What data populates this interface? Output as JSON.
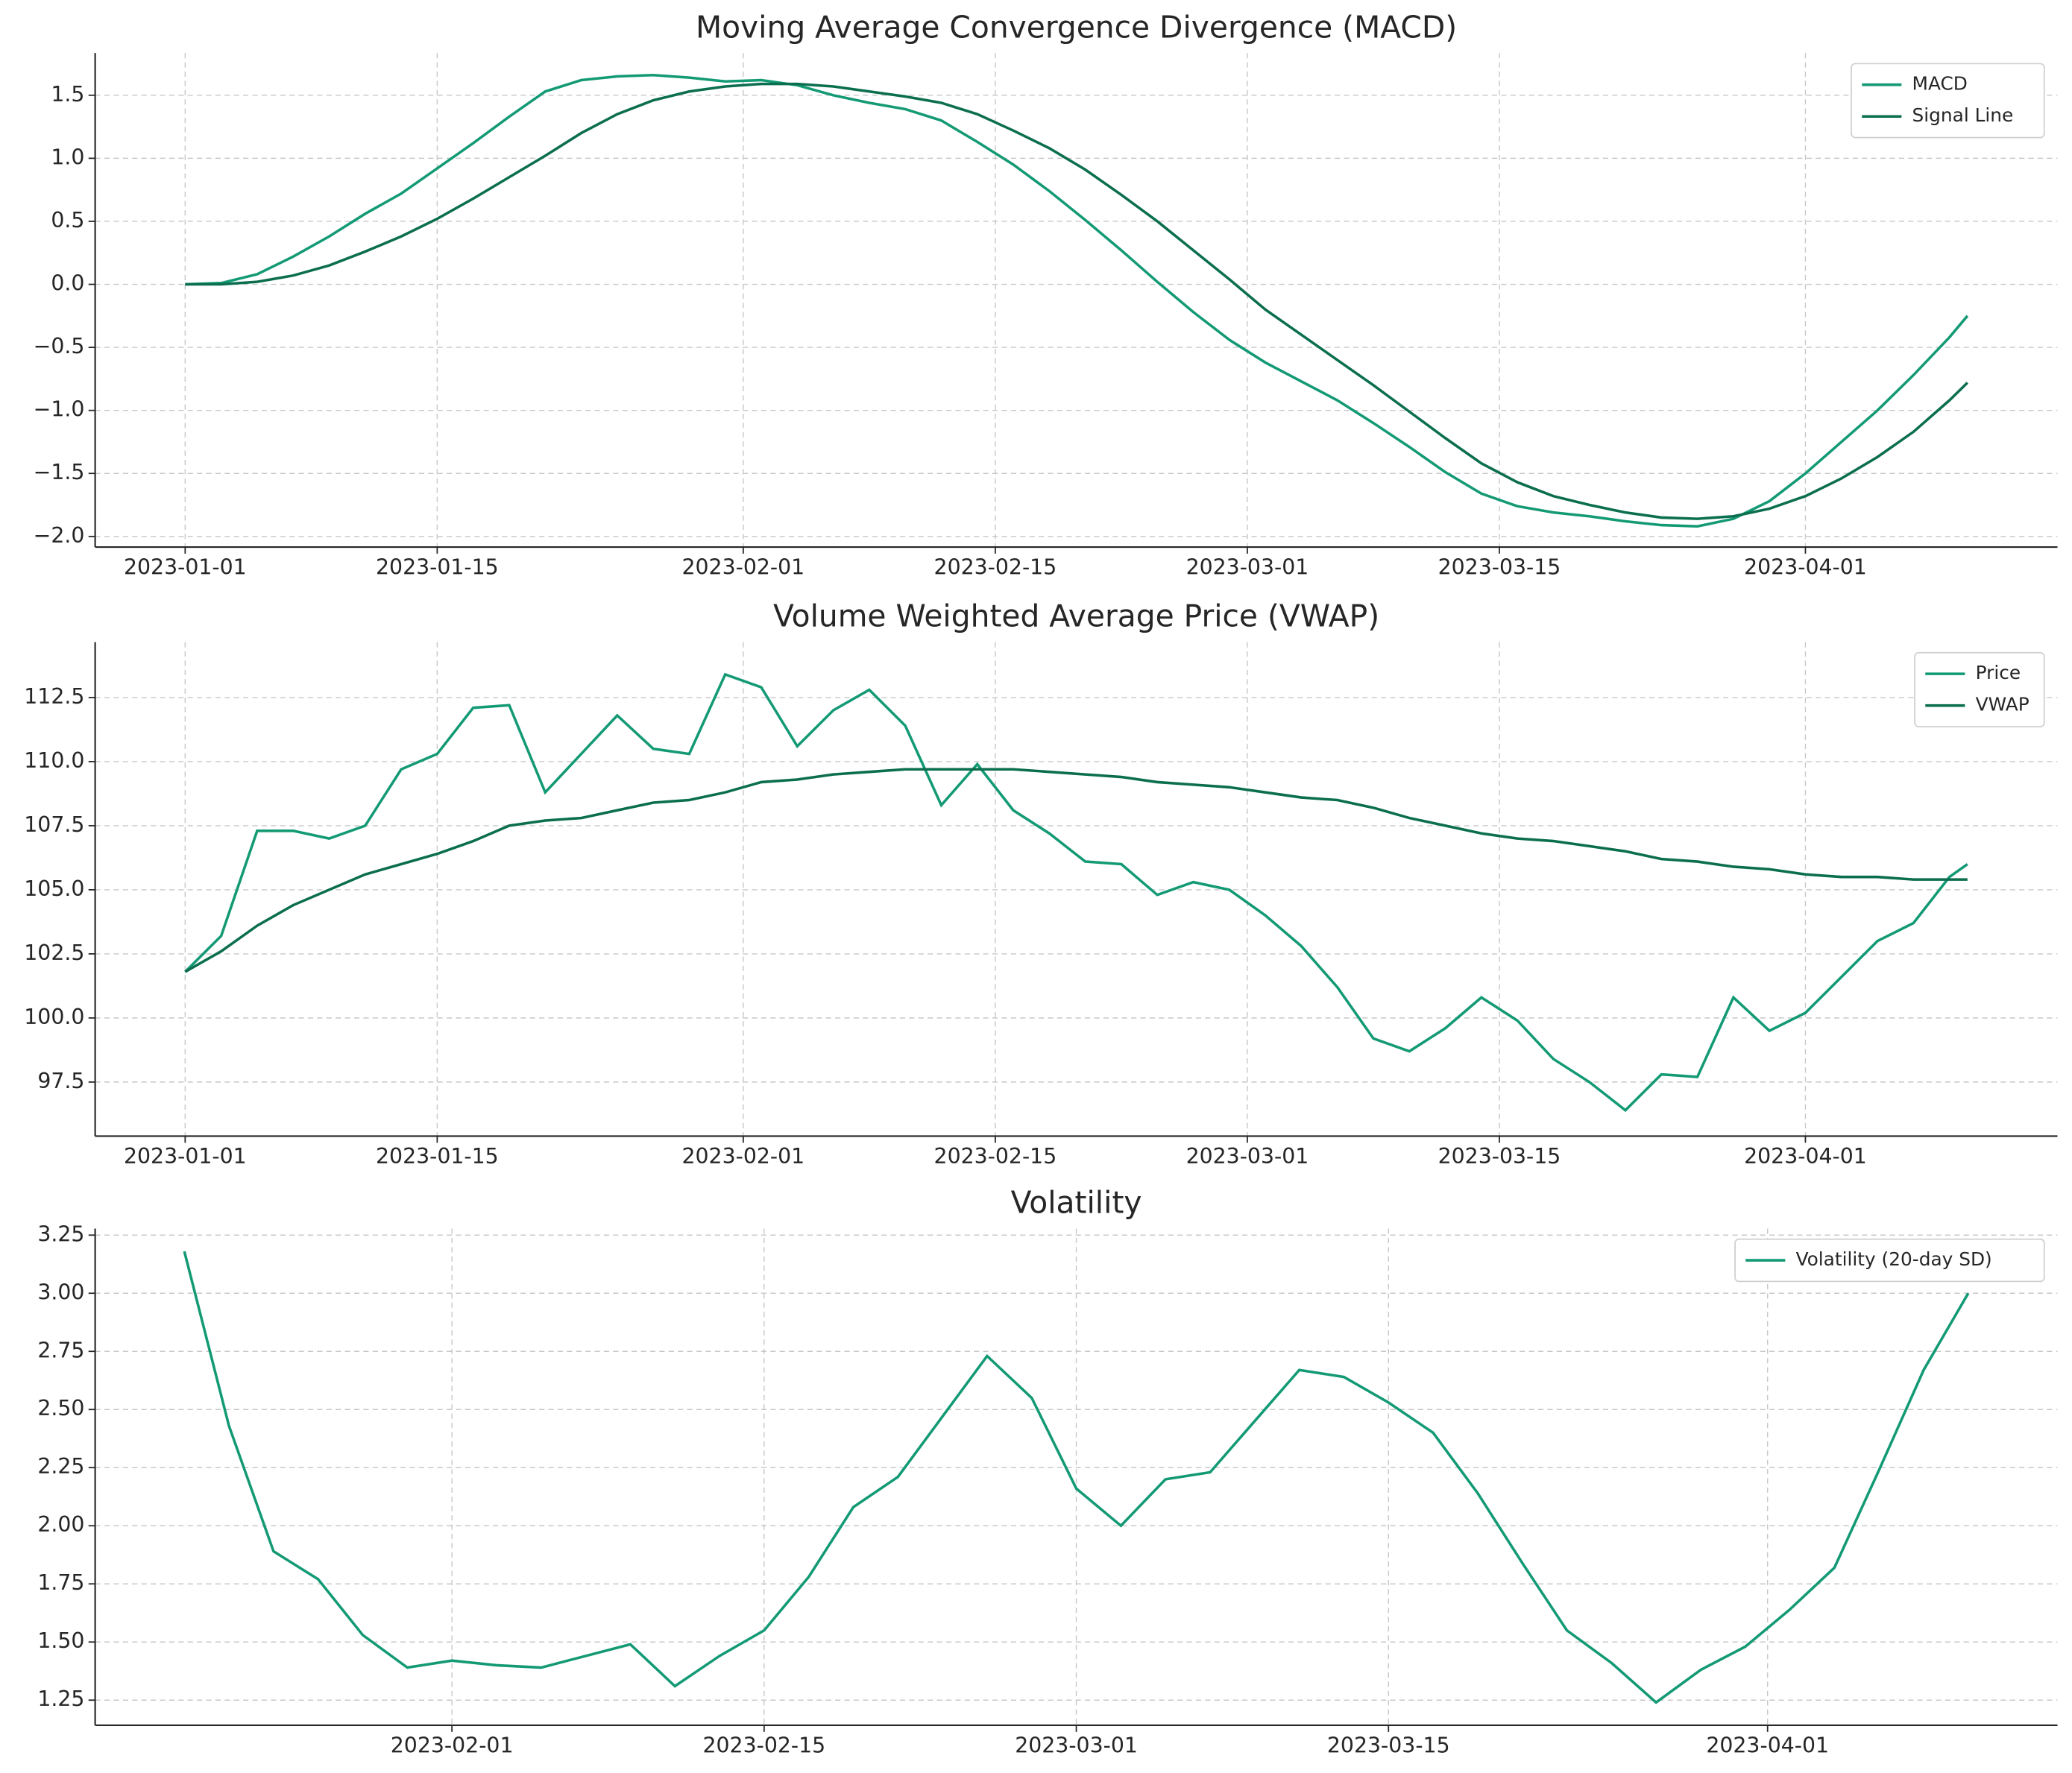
{
  "chart_data": [
    {
      "type": "line",
      "title": "Moving Average Convergence Divergence (MACD)",
      "x": [
        "2023-01-01",
        "2023-01-03",
        "2023-01-05",
        "2023-01-07",
        "2023-01-09",
        "2023-01-11",
        "2023-01-13",
        "2023-01-15",
        "2023-01-17",
        "2023-01-19",
        "2023-01-21",
        "2023-01-23",
        "2023-01-25",
        "2023-01-27",
        "2023-01-29",
        "2023-01-31",
        "2023-02-02",
        "2023-02-04",
        "2023-02-06",
        "2023-02-08",
        "2023-02-10",
        "2023-02-12",
        "2023-02-14",
        "2023-02-16",
        "2023-02-18",
        "2023-02-20",
        "2023-02-22",
        "2023-02-24",
        "2023-02-26",
        "2023-02-28",
        "2023-03-02",
        "2023-03-04",
        "2023-03-06",
        "2023-03-08",
        "2023-03-10",
        "2023-03-12",
        "2023-03-14",
        "2023-03-16",
        "2023-03-18",
        "2023-03-20",
        "2023-03-22",
        "2023-03-24",
        "2023-03-26",
        "2023-03-28",
        "2023-03-30",
        "2023-04-01",
        "2023-04-03",
        "2023-04-05",
        "2023-04-07",
        "2023-04-09",
        "2023-04-10"
      ],
      "series": [
        {
          "name": "MACD",
          "color": "#139a74",
          "values": [
            0,
            0.01,
            0.08,
            0.22,
            0.38,
            0.56,
            0.72,
            0.92,
            1.12,
            1.33,
            1.53,
            1.62,
            1.65,
            1.66,
            1.64,
            1.61,
            1.62,
            1.58,
            1.5,
            1.44,
            1.39,
            1.3,
            1.13,
            0.95,
            0.74,
            0.51,
            0.27,
            0.02,
            -0.22,
            -0.44,
            -0.62,
            -0.77,
            -0.92,
            -1.1,
            -1.29,
            -1.49,
            -1.66,
            -1.76,
            -1.81,
            -1.84,
            -1.88,
            -1.91,
            -1.92,
            -1.86,
            -1.72,
            -1.5,
            -1.25,
            -1.0,
            -0.72,
            -0.42,
            -0.25
          ]
        },
        {
          "name": "Signal Line",
          "color": "#0b6e4f",
          "values": [
            0,
            0,
            0.02,
            0.07,
            0.15,
            0.26,
            0.38,
            0.52,
            0.68,
            0.85,
            1.02,
            1.2,
            1.35,
            1.46,
            1.53,
            1.57,
            1.59,
            1.59,
            1.57,
            1.53,
            1.49,
            1.44,
            1.35,
            1.22,
            1.08,
            0.91,
            0.71,
            0.5,
            0.27,
            0.04,
            -0.2,
            -0.4,
            -0.6,
            -0.8,
            -1.01,
            -1.22,
            -1.42,
            -1.57,
            -1.68,
            -1.75,
            -1.81,
            -1.85,
            -1.86,
            -1.84,
            -1.78,
            -1.68,
            -1.54,
            -1.37,
            -1.17,
            -0.92,
            -0.78
          ]
        }
      ],
      "xlim": [
        "2022-12-27",
        "2023-04-15"
      ],
      "xticks": [
        "2023-01-01",
        "2023-01-15",
        "2023-02-01",
        "2023-02-15",
        "2023-03-01",
        "2023-03-15",
        "2023-04-01"
      ],
      "ylim": [
        -2.084,
        1.835
      ],
      "yticks": [
        {
          "value": -2,
          "label": "−2.0"
        },
        {
          "value": -1.5,
          "label": "−1.5"
        },
        {
          "value": -1,
          "label": "−1.0"
        },
        {
          "value": -0.5,
          "label": "−0.5"
        },
        {
          "value": 0,
          "label": "0.0"
        },
        0.5,
        {
          "value": 1,
          "label": "1.0"
        },
        1.5
      ],
      "grid": true,
      "legend": "upper right"
    },
    {
      "type": "line",
      "title": "Volume Weighted Average Price (VWAP)",
      "x": [
        "2023-01-01",
        "2023-01-03",
        "2023-01-05",
        "2023-01-07",
        "2023-01-09",
        "2023-01-11",
        "2023-01-13",
        "2023-01-15",
        "2023-01-17",
        "2023-01-19",
        "2023-01-21",
        "2023-01-23",
        "2023-01-25",
        "2023-01-27",
        "2023-01-29",
        "2023-01-31",
        "2023-02-02",
        "2023-02-04",
        "2023-02-06",
        "2023-02-08",
        "2023-02-10",
        "2023-02-12",
        "2023-02-14",
        "2023-02-16",
        "2023-02-18",
        "2023-02-20",
        "2023-02-22",
        "2023-02-24",
        "2023-02-26",
        "2023-02-28",
        "2023-03-02",
        "2023-03-04",
        "2023-03-06",
        "2023-03-08",
        "2023-03-10",
        "2023-03-12",
        "2023-03-14",
        "2023-03-16",
        "2023-03-18",
        "2023-03-20",
        "2023-03-22",
        "2023-03-24",
        "2023-03-26",
        "2023-03-28",
        "2023-03-30",
        "2023-04-01",
        "2023-04-03",
        "2023-04-05",
        "2023-04-07",
        "2023-04-09",
        "2023-04-10"
      ],
      "series": [
        {
          "name": "Price",
          "color": "#139a74",
          "values": [
            101.8,
            103.2,
            107.3,
            107.3,
            107.0,
            107.5,
            109.7,
            110.3,
            112.1,
            112.2,
            108.8,
            110.3,
            111.8,
            110.5,
            110.3,
            113.4,
            112.9,
            110.6,
            112.0,
            112.8,
            111.4,
            108.3,
            109.9,
            108.1,
            107.2,
            106.1,
            106.0,
            104.8,
            105.3,
            105.0,
            104.0,
            102.8,
            101.2,
            99.2,
            98.7,
            99.6,
            100.8,
            99.9,
            98.4,
            97.5,
            96.4,
            97.8,
            97.7,
            100.8,
            99.5,
            100.2,
            101.6,
            103.0,
            103.7,
            105.5,
            106.0
          ]
        },
        {
          "name": "VWAP",
          "color": "#0b6e4f",
          "values": [
            101.8,
            102.6,
            103.6,
            104.4,
            105.0,
            105.6,
            106.0,
            106.4,
            106.9,
            107.5,
            107.7,
            107.8,
            108.1,
            108.4,
            108.5,
            108.8,
            109.2,
            109.3,
            109.5,
            109.6,
            109.7,
            109.7,
            109.7,
            109.7,
            109.6,
            109.5,
            109.4,
            109.2,
            109.1,
            109.0,
            108.8,
            108.6,
            108.5,
            108.2,
            107.8,
            107.5,
            107.2,
            107.0,
            106.9,
            106.7,
            106.5,
            106.2,
            106.1,
            105.9,
            105.8,
            105.6,
            105.5,
            105.5,
            105.4,
            105.4,
            105.4
          ]
        }
      ],
      "xlim": [
        "2022-12-27",
        "2023-04-15"
      ],
      "xticks": [
        "2023-01-01",
        "2023-01-15",
        "2023-02-01",
        "2023-02-15",
        "2023-03-01",
        "2023-03-15",
        "2023-04-01"
      ],
      "ylim": [
        95.39,
        114.66
      ],
      "yticks": [
        97.5,
        {
          "value": 100,
          "label": "100.0"
        },
        102.5,
        {
          "value": 105,
          "label": "105.0"
        },
        107.5,
        {
          "value": 110,
          "label": "110.0"
        },
        112.5
      ],
      "grid": true,
      "legend": "upper right"
    },
    {
      "type": "line",
      "title": "Volatility",
      "x": [
        "2023-01-20",
        "2023-01-22",
        "2023-01-24",
        "2023-01-26",
        "2023-01-28",
        "2023-01-30",
        "2023-02-01",
        "2023-02-03",
        "2023-02-05",
        "2023-02-07",
        "2023-02-09",
        "2023-02-11",
        "2023-02-13",
        "2023-02-15",
        "2023-02-17",
        "2023-02-19",
        "2023-02-21",
        "2023-02-23",
        "2023-02-25",
        "2023-02-27",
        "2023-03-01",
        "2023-03-03",
        "2023-03-05",
        "2023-03-07",
        "2023-03-09",
        "2023-03-11",
        "2023-03-13",
        "2023-03-15",
        "2023-03-17",
        "2023-03-19",
        "2023-03-21",
        "2023-03-23",
        "2023-03-25",
        "2023-03-27",
        "2023-03-29",
        "2023-03-31",
        "2023-04-02",
        "2023-04-04",
        "2023-04-06",
        "2023-04-08",
        "2023-04-10"
      ],
      "series": [
        {
          "name": "Volatility (20-day SD)",
          "color": "#139a74",
          "values": [
            3.18,
            2.43,
            1.89,
            1.77,
            1.53,
            1.39,
            1.42,
            1.4,
            1.39,
            1.44,
            1.49,
            1.31,
            1.44,
            1.55,
            1.78,
            2.08,
            2.21,
            2.47,
            2.73,
            2.55,
            2.16,
            2.0,
            2.2,
            2.23,
            2.45,
            2.67,
            2.64,
            2.53,
            2.4,
            2.14,
            1.84,
            1.55,
            1.41,
            1.24,
            1.38,
            1.48,
            1.64,
            1.82,
            2.24,
            2.67,
            3.0
          ]
        }
      ],
      "xlim": [
        "2023-01-16",
        "2023-04-14"
      ],
      "xticks": [
        "2023-02-01",
        "2023-02-15",
        "2023-03-01",
        "2023-03-15",
        "2023-04-01"
      ],
      "ylim": [
        1.142,
        3.278
      ],
      "yticks": [
        1.25,
        {
          "value": 1.5,
          "label": "1.50"
        },
        1.75,
        {
          "value": 2,
          "label": "2.00"
        },
        2.25,
        {
          "value": 2.5,
          "label": "2.50"
        },
        2.75,
        {
          "value": 3,
          "label": "3.00"
        },
        3.25
      ],
      "grid": true,
      "legend": "upper right"
    }
  ]
}
